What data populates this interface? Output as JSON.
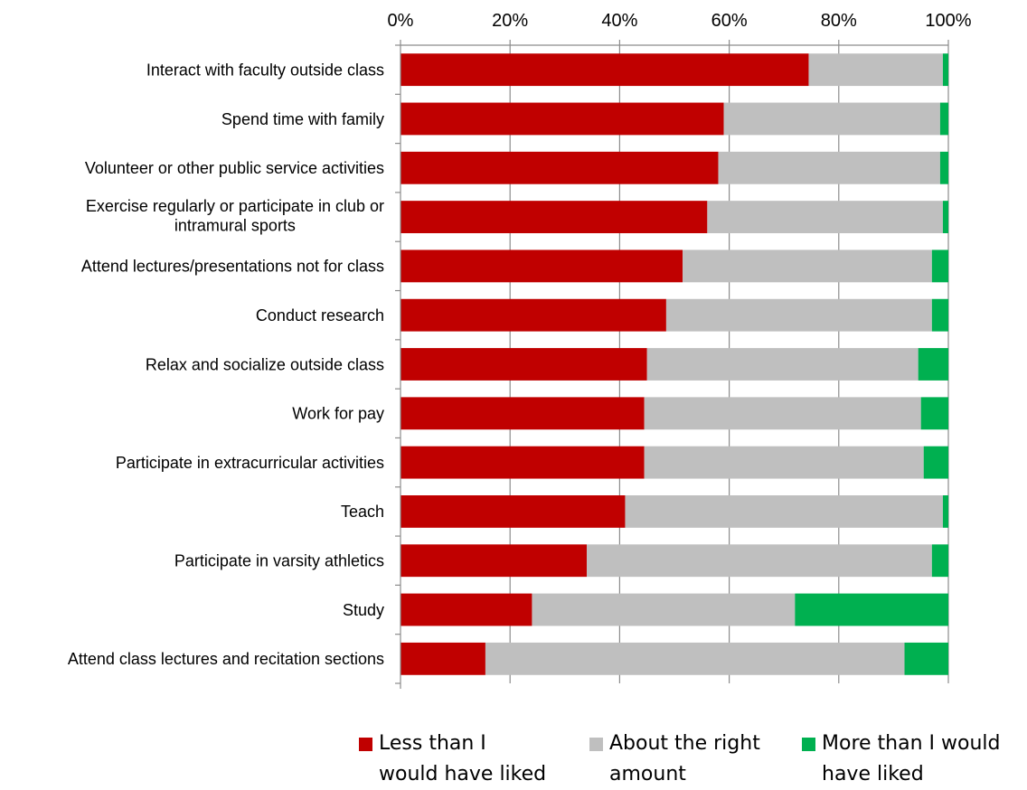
{
  "chart_data": {
    "type": "bar",
    "orientation": "horizontal",
    "stacked": "percent",
    "xlim": [
      0,
      100
    ],
    "x_ticks": [
      "0%",
      "20%",
      "40%",
      "60%",
      "80%",
      "100%"
    ],
    "x_axis_position": "top",
    "grid": "vertical",
    "legend_position": "bottom",
    "categories": [
      "Interact with faculty outside class",
      "Spend time with family",
      "Volunteer or other public service activities",
      "Exercise regularly or participate in club or intramural sports",
      "Attend lectures/presentations not for class",
      "Conduct research",
      "Relax and socialize outside class",
      "Work for pay",
      "Participate in extracurricular activities",
      "Teach",
      "Participate in varsity athletics",
      "Study",
      "Attend class lectures and recitation sections"
    ],
    "series": [
      {
        "name": "Less than I would have liked",
        "color": "#C00000",
        "values": [
          74.5,
          59,
          58,
          56,
          51.5,
          48.5,
          45,
          44.5,
          44.5,
          41,
          34,
          24,
          15.5
        ]
      },
      {
        "name": "About the right amount",
        "color": "#BFBFBF",
        "values": [
          24.5,
          39.5,
          40.5,
          43,
          45.5,
          48.5,
          49.5,
          50.5,
          51,
          58,
          63,
          48,
          76.5
        ]
      },
      {
        "name": "More than I would have liked",
        "color": "#00B050",
        "values": [
          1,
          1.5,
          1.5,
          1,
          3,
          3,
          5.5,
          5,
          4.5,
          1,
          3,
          28,
          8
        ]
      }
    ]
  },
  "legend": {
    "items": [
      {
        "label": "Less than I\nwould have liked",
        "color": "#C00000"
      },
      {
        "label": "About the right\namount",
        "color": "#BFBFBF"
      },
      {
        "label": "More than I would\nhave liked",
        "color": "#00B050"
      }
    ]
  }
}
